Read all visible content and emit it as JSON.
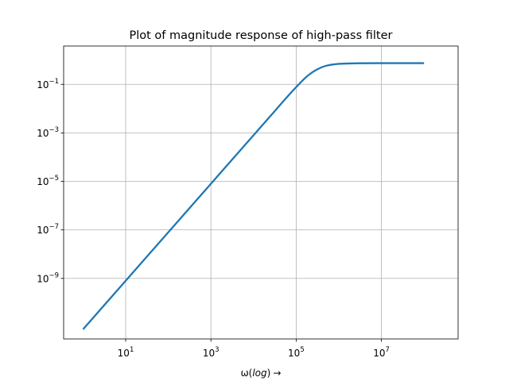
{
  "chart_data": {
    "type": "line",
    "title": "Plot of magnitude response of high-pass filter",
    "xlabel_base": "ω(",
    "xlabel_italic": "log",
    "xlabel_close": ")",
    "xlabel_arrow": "→",
    "ylabel": "",
    "x_scale": "log",
    "y_scale": "log",
    "xlim": [
      0.35,
      630000000
    ],
    "ylim": [
      3.2e-12,
      3.8
    ],
    "grid": true,
    "legend": "none",
    "x_ticks": [
      {
        "value": 10,
        "base": "10",
        "exp": "1"
      },
      {
        "value": 1000,
        "base": "10",
        "exp": "3"
      },
      {
        "value": 100000,
        "base": "10",
        "exp": "5"
      },
      {
        "value": 10000000,
        "base": "10",
        "exp": "7"
      }
    ],
    "y_ticks": [
      {
        "value": 0.1,
        "base": "10",
        "exp": "−1"
      },
      {
        "value": 0.001,
        "base": "10",
        "exp": "−3"
      },
      {
        "value": 1e-05,
        "base": "10",
        "exp": "−5"
      },
      {
        "value": 1e-07,
        "base": "10",
        "exp": "−7"
      },
      {
        "value": 1e-09,
        "base": "10",
        "exp": "−9"
      }
    ],
    "series": [
      {
        "color": "#1f77b4",
        "x": [
          1,
          10,
          100,
          1000,
          10000,
          30000,
          60000,
          100000,
          150000,
          200000,
          300000,
          500000,
          1000000,
          3000000,
          10000000,
          100000000
        ],
        "y": [
          8e-12,
          8e-10,
          8e-08,
          8e-06,
          0.0008,
          0.0072,
          0.029,
          0.077,
          0.16,
          0.25,
          0.4,
          0.58,
          0.7,
          0.74,
          0.75,
          0.75
        ]
      }
    ]
  }
}
